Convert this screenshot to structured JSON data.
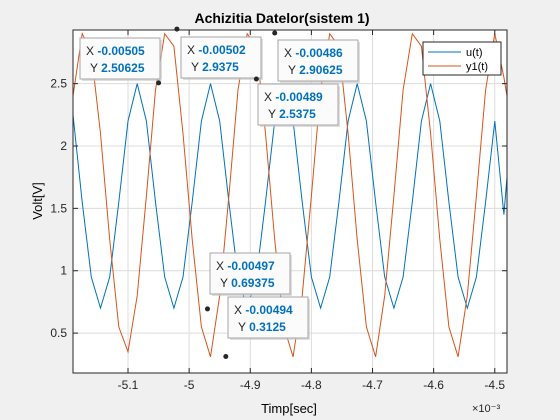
{
  "chart_data": {
    "type": "line",
    "title": "Achizitia Datelor(sistem 1)",
    "xlabel": "Timp[sec]",
    "ylabel": "Volt[V]",
    "x_exponent": "×10⁻³",
    "xlim": [
      -5.19,
      -4.48
    ],
    "ylim": [
      0.18,
      2.93
    ],
    "xticks": [
      -5.1,
      -5.0,
      -4.9,
      -4.8,
      -4.7,
      -4.6,
      -4.5
    ],
    "xtick_labels": [
      "-5.1",
      "-5",
      "-4.9",
      "-4.8",
      "-4.7",
      "-4.6",
      "-4.5"
    ],
    "yticks": [
      0.5,
      1.0,
      1.5,
      2.0,
      2.5
    ],
    "ytick_labels": [
      "0.5",
      "1",
      "1.5",
      "2",
      "2.5"
    ],
    "grid": true,
    "legend_position": "top-right",
    "series": [
      {
        "name": "u(t)",
        "color": "#0072bd",
        "x": [
          -5.19,
          -5.175,
          -5.16,
          -5.145,
          -5.13,
          -5.115,
          -5.1,
          -5.085,
          -5.07,
          -5.055,
          -5.04,
          -5.025,
          -5.01,
          -4.995,
          -4.98,
          -4.965,
          -4.95,
          -4.935,
          -4.92,
          -4.905,
          -4.89,
          -4.875,
          -4.86,
          -4.845,
          -4.83,
          -4.815,
          -4.8,
          -4.785,
          -4.77,
          -4.755,
          -4.74,
          -4.725,
          -4.71,
          -4.695,
          -4.68,
          -4.665,
          -4.65,
          -4.635,
          -4.62,
          -4.605,
          -4.59,
          -4.575,
          -4.56,
          -4.545,
          -4.53,
          -4.515,
          -4.5,
          -4.485,
          -4.48
        ],
        "y": [
          2.25,
          1.55,
          0.95,
          0.7,
          0.95,
          1.55,
          2.2,
          2.5,
          2.2,
          1.55,
          0.95,
          0.7,
          0.95,
          1.55,
          2.2,
          2.5,
          2.2,
          1.55,
          0.95,
          0.7,
          0.95,
          1.55,
          2.2,
          2.5,
          2.2,
          1.55,
          0.95,
          0.7,
          0.95,
          1.55,
          2.2,
          2.5,
          2.2,
          1.55,
          0.95,
          0.7,
          0.95,
          1.55,
          2.2,
          2.5,
          2.2,
          1.55,
          0.95,
          0.7,
          0.95,
          1.55,
          2.2,
          1.45,
          1.75
        ]
      },
      {
        "name": "y1(t)",
        "color": "#d95319",
        "x": [
          -5.19,
          -5.175,
          -5.16,
          -5.145,
          -5.13,
          -5.115,
          -5.1,
          -5.085,
          -5.07,
          -5.055,
          -5.04,
          -5.025,
          -5.01,
          -4.995,
          -4.98,
          -4.965,
          -4.95,
          -4.935,
          -4.92,
          -4.905,
          -4.89,
          -4.875,
          -4.86,
          -4.845,
          -4.83,
          -4.815,
          -4.8,
          -4.785,
          -4.77,
          -4.755,
          -4.74,
          -4.725,
          -4.71,
          -4.695,
          -4.68,
          -4.665,
          -4.65,
          -4.635,
          -4.62,
          -4.605,
          -4.59,
          -4.575,
          -4.56,
          -4.545,
          -4.53,
          -4.515,
          -4.5,
          -4.485,
          -4.48
        ],
        "y": [
          2.4,
          2.9,
          2.75,
          2.1,
          1.25,
          0.55,
          0.35,
          0.8,
          1.6,
          2.45,
          2.9,
          2.8,
          2.1,
          1.25,
          0.55,
          0.31,
          0.8,
          1.6,
          2.45,
          2.9,
          2.8,
          2.1,
          1.25,
          0.55,
          0.31,
          0.8,
          1.6,
          2.45,
          2.9,
          2.8,
          2.1,
          1.25,
          0.55,
          0.31,
          0.8,
          1.6,
          2.45,
          2.9,
          2.8,
          2.1,
          1.25,
          0.55,
          0.31,
          0.8,
          1.6,
          2.45,
          2.9,
          2.55,
          2.4
        ]
      }
    ],
    "datatips": [
      {
        "x_label": "X",
        "x_value": "-0.00505",
        "y_label": "Y",
        "y_value": "2.50625",
        "px": -5.05,
        "py": 2.50625
      },
      {
        "x_label": "X",
        "x_value": "-0.00502",
        "y_label": "Y",
        "y_value": "2.9375",
        "px": -5.02,
        "py": 2.9375
      },
      {
        "x_label": "X",
        "x_value": "-0.00486",
        "y_label": "Y",
        "y_value": "2.90625",
        "px": -4.86,
        "py": 2.90625
      },
      {
        "x_label": "X",
        "x_value": "-0.00489",
        "y_label": "Y",
        "y_value": "2.5375",
        "px": -4.89,
        "py": 2.5375
      },
      {
        "x_label": "X",
        "x_value": "-0.00497",
        "y_label": "Y",
        "y_value": "0.69375",
        "px": -4.97,
        "py": 0.69375
      },
      {
        "x_label": "X",
        "x_value": "-0.00494",
        "y_label": "Y",
        "y_value": "0.3125",
        "px": -4.94,
        "py": 0.3125
      }
    ]
  }
}
